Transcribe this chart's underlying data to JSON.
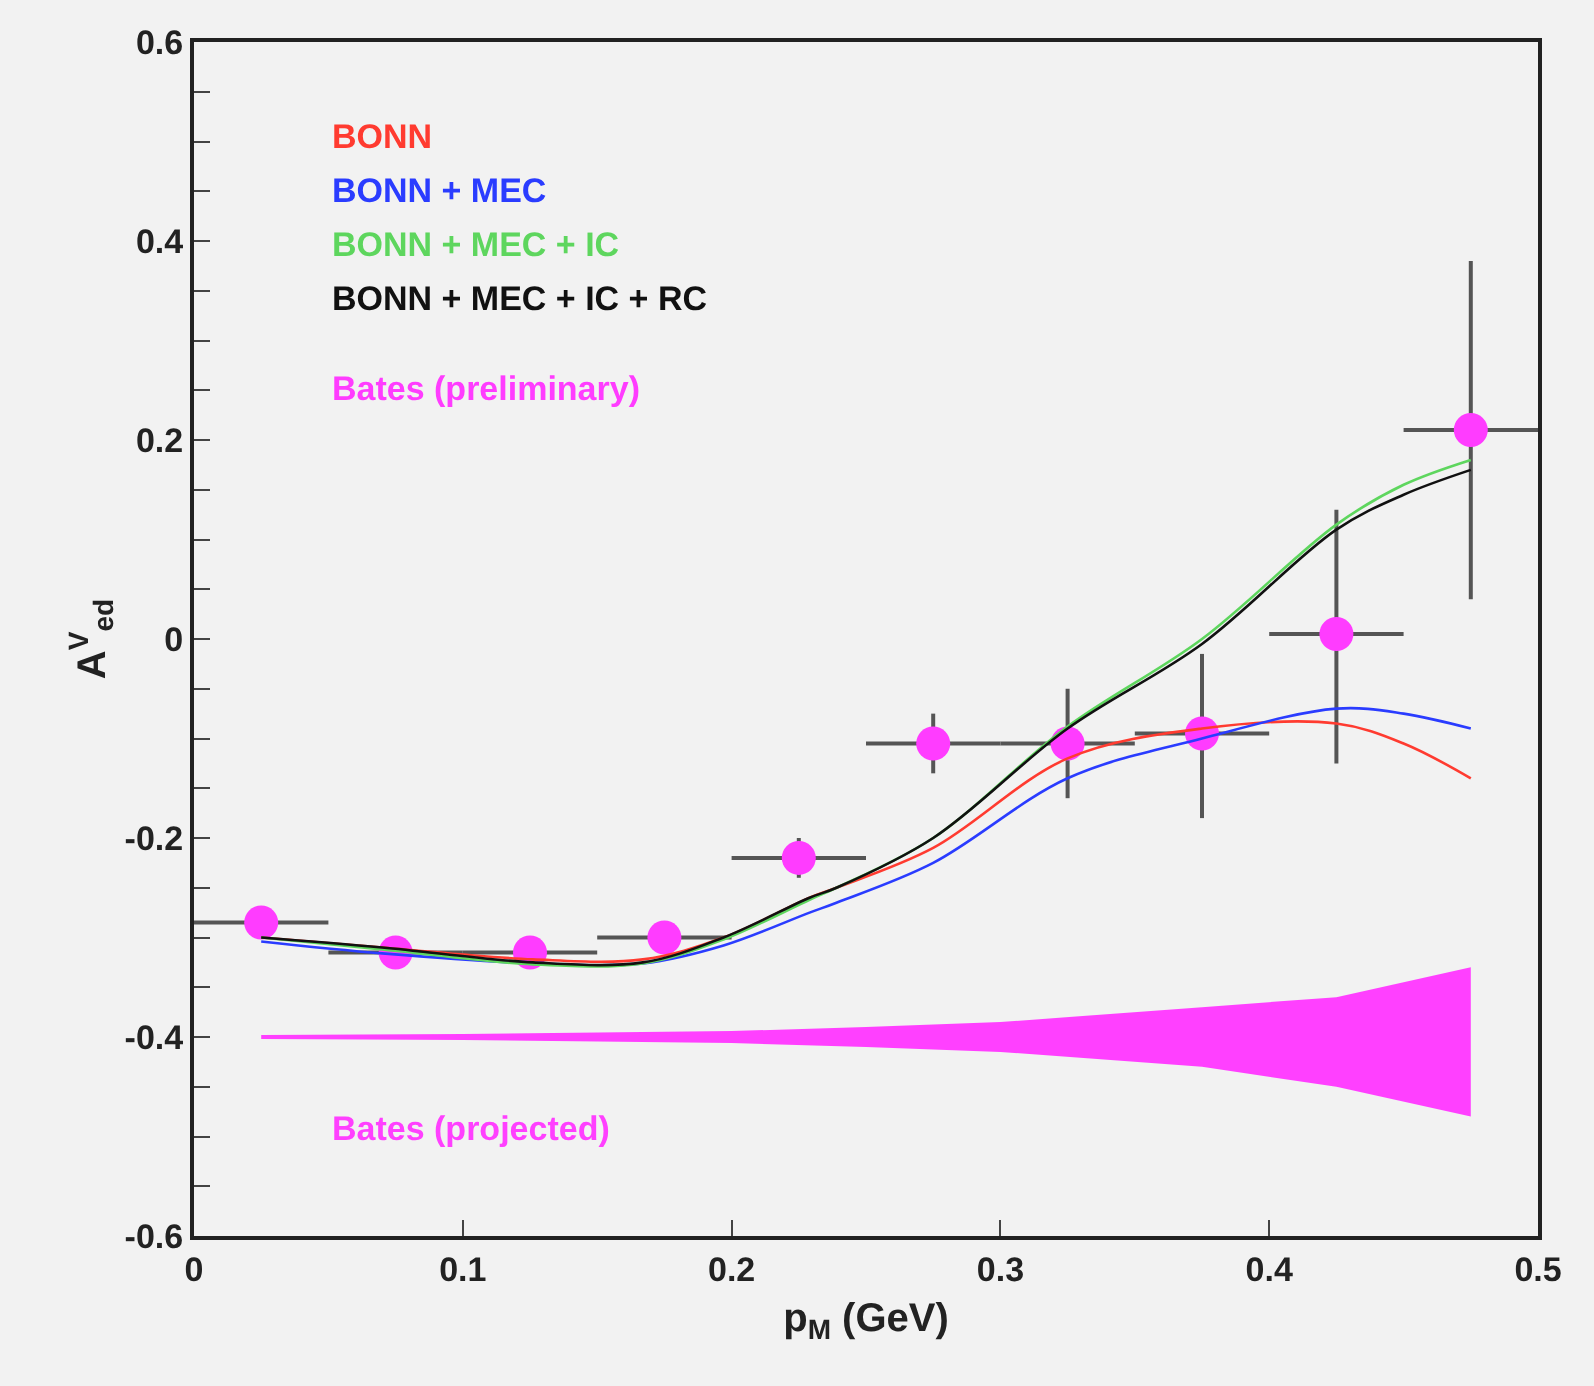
{
  "chart_data": {
    "type": "line",
    "xlabel": "p$_{M}$ (GeV)",
    "ylabel": "A$^{V}$$_{ed}$",
    "xlim": [
      0,
      0.5
    ],
    "xticks": [
      0,
      0.1,
      0.2,
      0.3,
      0.4,
      0.5
    ],
    "ylim": [
      -0.6,
      0.6
    ],
    "yticks": [
      -0.6,
      {
        "value": -0.55,
        "label": null
      },
      {
        "value": -0.5,
        "label": null
      },
      {
        "value": -0.45,
        "label": null
      },
      -0.4,
      {
        "value": -0.35,
        "label": null
      },
      {
        "value": -0.3,
        "label": null
      },
      {
        "value": -0.25,
        "label": null
      },
      -0.2,
      {
        "value": -0.15,
        "label": null
      },
      {
        "value": -0.1,
        "label": null
      },
      {
        "value": -0.05,
        "label": null
      },
      0,
      {
        "value": 0.05,
        "label": null
      },
      {
        "value": 0.1,
        "label": null
      },
      {
        "value": 0.15,
        "label": null
      },
      0.2,
      {
        "value": 0.25,
        "label": null
      },
      {
        "value": 0.3,
        "label": null
      },
      {
        "value": 0.35,
        "label": null
      },
      0.4,
      {
        "value": 0.45,
        "label": null
      },
      {
        "value": 0.5,
        "label": null
      },
      {
        "value": 0.55,
        "label": null
      },
      0.6
    ],
    "grid": false,
    "legend": "top left",
    "line_style": "solid",
    "series": [
      {
        "name": "BONN",
        "color": "#ff3b30",
        "x": [
          0.025,
          0.07,
          0.126,
          0.167,
          0.197,
          0.229,
          0.239,
          0.275,
          0.325,
          0.375,
          0.425,
          0.45,
          0.475
        ],
        "values": [
          -0.3,
          -0.31,
          -0.322,
          -0.322,
          -0.3,
          -0.26,
          -0.25,
          -0.21,
          -0.12,
          -0.09,
          -0.085,
          -0.105,
          -0.14
        ]
      },
      {
        "name": "BONN + MEC",
        "color": "#2a3cff",
        "x": [
          0.025,
          0.07,
          0.126,
          0.167,
          0.197,
          0.229,
          0.239,
          0.275,
          0.325,
          0.375,
          0.425,
          0.45,
          0.475
        ],
        "values": [
          -0.304,
          -0.316,
          -0.326,
          -0.326,
          -0.308,
          -0.275,
          -0.265,
          -0.225,
          -0.14,
          -0.1,
          -0.07,
          -0.075,
          -0.09
        ]
      },
      {
        "name": "BONN + MEC + IC",
        "color": "#5ed65e",
        "x": [
          0.025,
          0.07,
          0.126,
          0.167,
          0.197,
          0.229,
          0.239,
          0.275,
          0.325,
          0.375,
          0.425,
          0.45,
          0.475
        ],
        "values": [
          -0.3,
          -0.312,
          -0.327,
          -0.326,
          -0.302,
          -0.262,
          -0.25,
          -0.2,
          -0.088,
          0.0,
          0.115,
          0.155,
          0.18
        ]
      },
      {
        "name": "BONN + MEC + IC + RC",
        "color": "#111111",
        "x": [
          0.025,
          0.07,
          0.126,
          0.167,
          0.197,
          0.229,
          0.239,
          0.275,
          0.325,
          0.375,
          0.425,
          0.45,
          0.475
        ],
        "values": [
          -0.3,
          -0.31,
          -0.325,
          -0.325,
          -0.3,
          -0.26,
          -0.25,
          -0.2,
          -0.09,
          -0.005,
          0.11,
          0.145,
          0.17
        ]
      },
      {
        "name": "Bates (preliminary)",
        "type": "scatter",
        "marker": "circle",
        "color": "#ff3cff",
        "x": [
          0.025,
          0.075,
          0.125,
          0.175,
          0.225,
          0.275,
          0.325,
          0.375,
          0.425,
          0.475
        ],
        "values": [
          -0.285,
          -0.315,
          -0.315,
          -0.3,
          -0.22,
          -0.105,
          -0.105,
          -0.095,
          0.005,
          0.21
        ],
        "errors": [
          null,
          null,
          null,
          null,
          0.02,
          0.03,
          [
            -0.16,
            -0.05
          ],
          [
            -0.18,
            -0.015
          ],
          [
            -0.125,
            0.13
          ],
          [
            0.04,
            0.38
          ]
        ],
        "xerrors": [
          0.025,
          0.025,
          0.025,
          0.025,
          0.025,
          0.025,
          0.025,
          0.025,
          0.025,
          0.025
        ]
      },
      {
        "name": "Bates (projected)",
        "type": "area",
        "color": "#ff40ff",
        "x": [
          0.025,
          0.1,
          0.2,
          0.25,
          0.3,
          0.375,
          0.425,
          0.475
        ],
        "values": [
          null,
          null,
          null,
          null,
          null,
          null,
          null,
          null
        ],
        "lower": [
          -0.402,
          -0.403,
          -0.406,
          -0.41,
          -0.415,
          -0.43,
          -0.45,
          -0.48
        ],
        "upper": [
          -0.398,
          -0.397,
          -0.394,
          -0.39,
          -0.385,
          -0.37,
          -0.36,
          -0.33
        ]
      }
    ]
  }
}
